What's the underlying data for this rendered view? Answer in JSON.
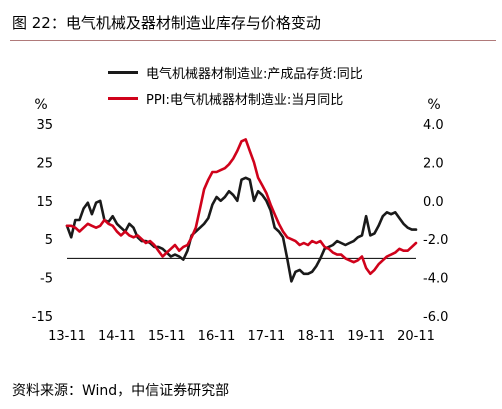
{
  "header": {
    "title": "图 22：电气机械及器材制造业库存与价格变动"
  },
  "footer": {
    "source": "资料来源：Wind，中信证券研究部"
  },
  "colors": {
    "black_series": "#1a1a1a",
    "red_series": "#d0021b",
    "title_rule": "#b07a7a"
  },
  "chart_data": {
    "type": "line",
    "left_axis": {
      "unit_label": "%",
      "ylim": [
        -15,
        35
      ],
      "ticks": [
        35,
        25,
        15,
        5,
        -5,
        -15
      ]
    },
    "right_axis": {
      "unit_label": "%",
      "ylim": [
        -6.0,
        4.0
      ],
      "ticks": [
        "4.0",
        "2.0",
        "0.0",
        "-2.0",
        "-4.0",
        "-6.0"
      ]
    },
    "x_ticks": [
      "13-11",
      "14-11",
      "15-11",
      "16-11",
      "17-11",
      "18-11",
      "19-11",
      "20-11"
    ],
    "x_range": [
      0,
      84
    ],
    "zero_line_left": 0,
    "series": [
      {
        "name": "电气机械器材制造业:产成品存货:同比",
        "axis": "left",
        "color": "#1a1a1a",
        "x": [
          0,
          1,
          2,
          3,
          4,
          5,
          6,
          7,
          8,
          9,
          10,
          11,
          12,
          13,
          14,
          15,
          16,
          17,
          18,
          19,
          20,
          21,
          22,
          23,
          24,
          25,
          26,
          27,
          28,
          29,
          30,
          31,
          32,
          33,
          34,
          35,
          36,
          37,
          38,
          39,
          40,
          41,
          42,
          43,
          44,
          45,
          46,
          47,
          48,
          49,
          50,
          51,
          52,
          53,
          54,
          55,
          56,
          57,
          58,
          59,
          60,
          61,
          62,
          63,
          64,
          65,
          66,
          67,
          68,
          69,
          70,
          71,
          72,
          73,
          74,
          75,
          76,
          77,
          78,
          79,
          80,
          81,
          82,
          83,
          84
        ],
        "values": [
          8.5,
          5.5,
          10,
          10,
          13,
          14.5,
          11.5,
          14.5,
          15,
          10,
          9.5,
          11,
          9,
          8,
          7,
          9,
          8,
          5.5,
          4.5,
          4.5,
          4,
          3,
          3,
          2.5,
          1.5,
          0.5,
          1,
          0.5,
          -0.3,
          2,
          6,
          7,
          8,
          9,
          10.5,
          14,
          16,
          15,
          16,
          17.5,
          16.5,
          15,
          20.5,
          21,
          20.5,
          15,
          17.5,
          16.5,
          15,
          12.5,
          8,
          7,
          5.5,
          0,
          -6,
          -3.5,
          -3,
          -4,
          -4,
          -3.5,
          -2,
          0,
          2.5,
          3,
          3.5,
          4.5,
          4,
          3.5,
          4,
          4.5,
          5.5,
          6,
          11,
          6,
          6.5,
          8.5,
          11,
          12,
          11.5,
          12,
          10.5,
          9,
          8,
          7.5,
          7.5
        ]
      },
      {
        "name": "PPI:电气机械器材制造业:当月同比",
        "axis": "right",
        "color": "#d0021b",
        "x": [
          0,
          1,
          2,
          3,
          4,
          5,
          6,
          7,
          8,
          9,
          10,
          11,
          12,
          13,
          14,
          15,
          16,
          17,
          18,
          19,
          20,
          21,
          22,
          23,
          24,
          25,
          26,
          27,
          28,
          29,
          30,
          31,
          32,
          33,
          34,
          35,
          36,
          37,
          38,
          39,
          40,
          41,
          42,
          43,
          44,
          45,
          46,
          47,
          48,
          49,
          50,
          51,
          52,
          53,
          54,
          55,
          56,
          57,
          58,
          59,
          60,
          61,
          62,
          63,
          64,
          65,
          66,
          67,
          68,
          69,
          70,
          71,
          72,
          73,
          74,
          75,
          76,
          77,
          78,
          79,
          80,
          81,
          82,
          83,
          84
        ],
        "values": [
          -1.3,
          -1.3,
          -1.4,
          -1.6,
          -1.4,
          -1.2,
          -1.3,
          -1.4,
          -1.3,
          -1.0,
          -1.2,
          -1.3,
          -1.6,
          -1.8,
          -1.6,
          -1.8,
          -1.9,
          -1.8,
          -2.0,
          -2.2,
          -2.1,
          -2.3,
          -2.6,
          -2.9,
          -2.7,
          -2.5,
          -2.3,
          -2.6,
          -2.4,
          -2.3,
          -1.9,
          -1.4,
          -0.4,
          0.6,
          1.1,
          1.5,
          1.5,
          1.6,
          1.7,
          1.9,
          2.2,
          2.6,
          3.1,
          3.2,
          2.6,
          2.0,
          1.2,
          0.8,
          0.4,
          -0.2,
          -0.7,
          -1.2,
          -1.6,
          -1.9,
          -2.0,
          -2.1,
          -2.3,
          -2.2,
          -2.3,
          -2.1,
          -2.2,
          -2.1,
          -2.4,
          -2.5,
          -2.7,
          -2.8,
          -2.8,
          -3.0,
          -3.1,
          -3.2,
          -3.1,
          -2.9,
          -3.5,
          -3.8,
          -3.6,
          -3.3,
          -3.1,
          -2.9,
          -2.8,
          -2.7,
          -2.5,
          -2.6,
          -2.6,
          -2.4,
          -2.2
        ]
      }
    ]
  }
}
